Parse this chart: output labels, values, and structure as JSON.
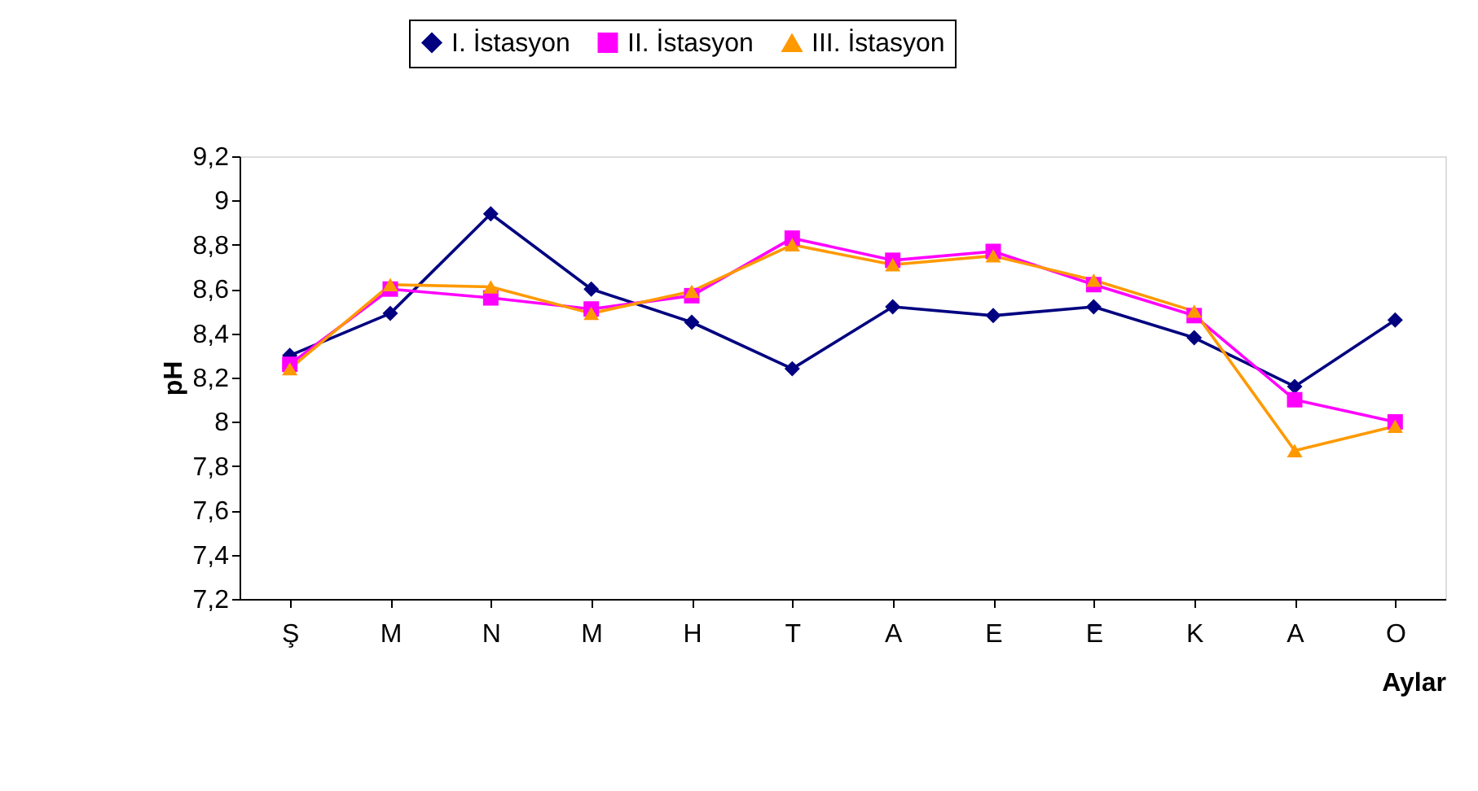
{
  "chart_data": {
    "type": "line",
    "ylabel": "pH",
    "xlabel": "Aylar",
    "categories": [
      "Ş",
      "M",
      "N",
      "M",
      "H",
      "T",
      "A",
      "E",
      "E",
      "K",
      "A",
      "O"
    ],
    "series": [
      {
        "name": "I. İstasyon",
        "color": "#000080",
        "marker": "diamond",
        "values": [
          8.3,
          8.49,
          8.94,
          8.6,
          8.45,
          8.24,
          8.52,
          8.48,
          8.52,
          8.38,
          8.16,
          8.46
        ]
      },
      {
        "name": "II. İstasyon",
        "color": "#ff00ff",
        "marker": "square",
        "values": [
          8.26,
          8.6,
          8.56,
          8.51,
          8.57,
          8.83,
          8.73,
          8.77,
          8.62,
          8.48,
          8.1,
          8.0
        ]
      },
      {
        "name": "III. İstasyon",
        "color": "#ff9900",
        "marker": "triangle",
        "values": [
          8.24,
          8.62,
          8.61,
          8.49,
          8.59,
          8.8,
          8.71,
          8.75,
          8.64,
          8.5,
          7.87,
          7.98
        ]
      }
    ],
    "ylim": [
      7.2,
      9.2
    ],
    "yticks": [
      {
        "value": 7.2,
        "label": "7,2"
      },
      {
        "value": 7.4,
        "label": "7,4"
      },
      {
        "value": 7.6,
        "label": "7,6"
      },
      {
        "value": 7.8,
        "label": "7,8"
      },
      8,
      {
        "value": 8.2,
        "label": "8,2"
      },
      {
        "value": 8.4,
        "label": "8,4"
      },
      {
        "value": 8.6,
        "label": "8,6"
      },
      {
        "value": 8.8,
        "label": "8,8"
      },
      9,
      {
        "value": 9.2,
        "label": "9,2"
      }
    ],
    "grid": false,
    "legend": "top",
    "line_style": "solid"
  }
}
